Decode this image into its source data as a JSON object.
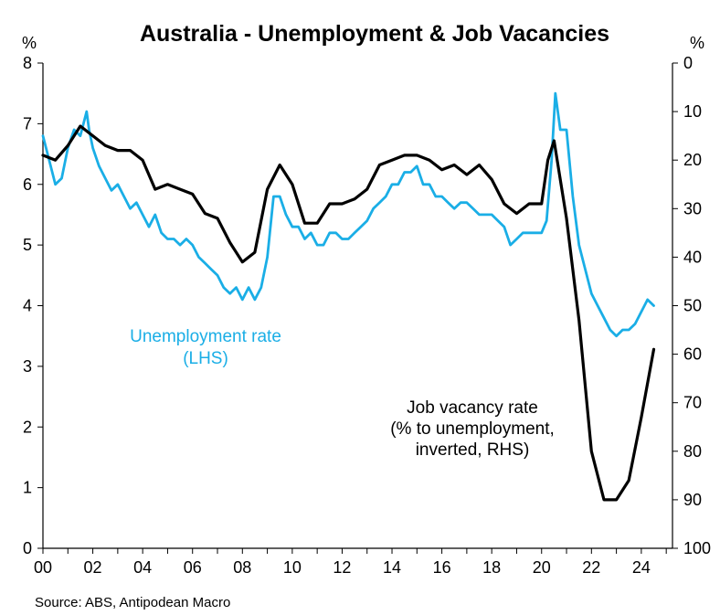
{
  "chart_data": {
    "type": "line",
    "title": "Australia - Unemployment & Job Vacancies",
    "y_left_unit": "%",
    "y_right_unit": "%",
    "x_tick_labels": [
      "00",
      "02",
      "04",
      "06",
      "08",
      "10",
      "12",
      "14",
      "16",
      "18",
      "20",
      "22",
      "24"
    ],
    "xlim": [
      2000,
      2025.25
    ],
    "ylim_left": [
      0,
      8
    ],
    "ylim_right": [
      0,
      100
    ],
    "y_right_inverted": true,
    "y_left_ticks": [
      0,
      1,
      2,
      3,
      4,
      5,
      6,
      7,
      8
    ],
    "y_right_ticks": [
      0,
      10,
      20,
      30,
      40,
      50,
      60,
      70,
      80,
      90,
      100
    ],
    "grid": false,
    "source": "Source: ABS, Antipodean Macro",
    "series": [
      {
        "name": "Unemployment rate (LHS)",
        "label_lines": [
          "Unemployment rate",
          "(LHS)"
        ],
        "axis": "left",
        "color": "#1aaee6",
        "x": [
          2000.0,
          2000.25,
          2000.5,
          2000.75,
          2001.0,
          2001.25,
          2001.5,
          2001.75,
          2001.85,
          2002.0,
          2002.25,
          2002.5,
          2002.75,
          2003.0,
          2003.25,
          2003.5,
          2003.75,
          2004.0,
          2004.25,
          2004.5,
          2004.75,
          2005.0,
          2005.25,
          2005.5,
          2005.75,
          2006.0,
          2006.25,
          2006.5,
          2006.75,
          2007.0,
          2007.25,
          2007.5,
          2007.75,
          2008.0,
          2008.25,
          2008.5,
          2008.75,
          2009.0,
          2009.25,
          2009.5,
          2009.75,
          2010.0,
          2010.25,
          2010.5,
          2010.75,
          2011.0,
          2011.25,
          2011.5,
          2011.75,
          2012.0,
          2012.25,
          2012.5,
          2012.75,
          2013.0,
          2013.25,
          2013.5,
          2013.75,
          2014.0,
          2014.25,
          2014.5,
          2014.75,
          2015.0,
          2015.25,
          2015.5,
          2015.75,
          2016.0,
          2016.25,
          2016.5,
          2016.75,
          2017.0,
          2017.25,
          2017.5,
          2017.75,
          2018.0,
          2018.25,
          2018.5,
          2018.75,
          2019.0,
          2019.25,
          2019.5,
          2019.75,
          2020.0,
          2020.2,
          2020.4,
          2020.55,
          2020.75,
          2021.0,
          2021.25,
          2021.5,
          2021.75,
          2022.0,
          2022.25,
          2022.5,
          2022.75,
          2023.0,
          2023.25,
          2023.5,
          2023.75,
          2024.0,
          2024.25,
          2024.5
        ],
        "y": [
          6.8,
          6.4,
          6.0,
          6.1,
          6.6,
          6.9,
          6.8,
          7.2,
          6.9,
          6.6,
          6.3,
          6.1,
          5.9,
          6.0,
          5.8,
          5.6,
          5.7,
          5.5,
          5.3,
          5.5,
          5.2,
          5.1,
          5.1,
          5.0,
          5.1,
          5.0,
          4.8,
          4.7,
          4.6,
          4.5,
          4.3,
          4.2,
          4.3,
          4.1,
          4.3,
          4.1,
          4.3,
          4.8,
          5.8,
          5.8,
          5.5,
          5.3,
          5.3,
          5.1,
          5.2,
          5.0,
          5.0,
          5.2,
          5.2,
          5.1,
          5.1,
          5.2,
          5.3,
          5.4,
          5.6,
          5.7,
          5.8,
          6.0,
          6.0,
          6.2,
          6.2,
          6.3,
          6.0,
          6.0,
          5.8,
          5.8,
          5.7,
          5.6,
          5.7,
          5.7,
          5.6,
          5.5,
          5.5,
          5.5,
          5.4,
          5.3,
          5.0,
          5.1,
          5.2,
          5.2,
          5.2,
          5.2,
          5.4,
          6.4,
          7.5,
          6.9,
          6.9,
          5.8,
          5.0,
          4.6,
          4.2,
          4.0,
          3.8,
          3.6,
          3.5,
          3.6,
          3.6,
          3.7,
          3.9,
          4.1,
          4.0
        ],
        "label_position": "center-left"
      },
      {
        "name": "Job vacancy rate (% to unemployment, inverted, RHS)",
        "label_lines": [
          "Job vacancy rate",
          "(% to unemployment,",
          "inverted, RHS)"
        ],
        "axis": "right",
        "color": "#000000",
        "x": [
          2000.0,
          2000.5,
          2001.0,
          2001.5,
          2002.0,
          2002.5,
          2003.0,
          2003.5,
          2004.0,
          2004.5,
          2005.0,
          2005.5,
          2006.0,
          2006.5,
          2007.0,
          2007.5,
          2008.0,
          2008.5,
          2009.0,
          2009.5,
          2010.0,
          2010.5,
          2011.0,
          2011.5,
          2012.0,
          2012.5,
          2013.0,
          2013.5,
          2014.0,
          2014.5,
          2015.0,
          2015.5,
          2016.0,
          2016.5,
          2017.0,
          2017.5,
          2018.0,
          2018.5,
          2019.0,
          2019.5,
          2020.0,
          2020.25,
          2020.5,
          2021.0,
          2021.5,
          2022.0,
          2022.5,
          2023.0,
          2023.5,
          2024.0,
          2024.5
        ],
        "y": [
          19,
          20,
          17,
          13,
          15,
          17,
          18,
          18,
          20,
          26,
          25,
          26,
          27,
          31,
          32,
          37,
          41,
          39,
          26,
          21,
          25,
          33,
          33,
          29,
          29,
          28,
          26,
          21,
          20,
          19,
          19,
          20,
          22,
          21,
          23,
          21,
          24,
          29,
          31,
          29,
          29,
          20,
          16,
          32,
          53,
          80,
          90,
          90,
          86,
          73,
          59
        ],
        "label_position": "lower-right"
      }
    ]
  }
}
